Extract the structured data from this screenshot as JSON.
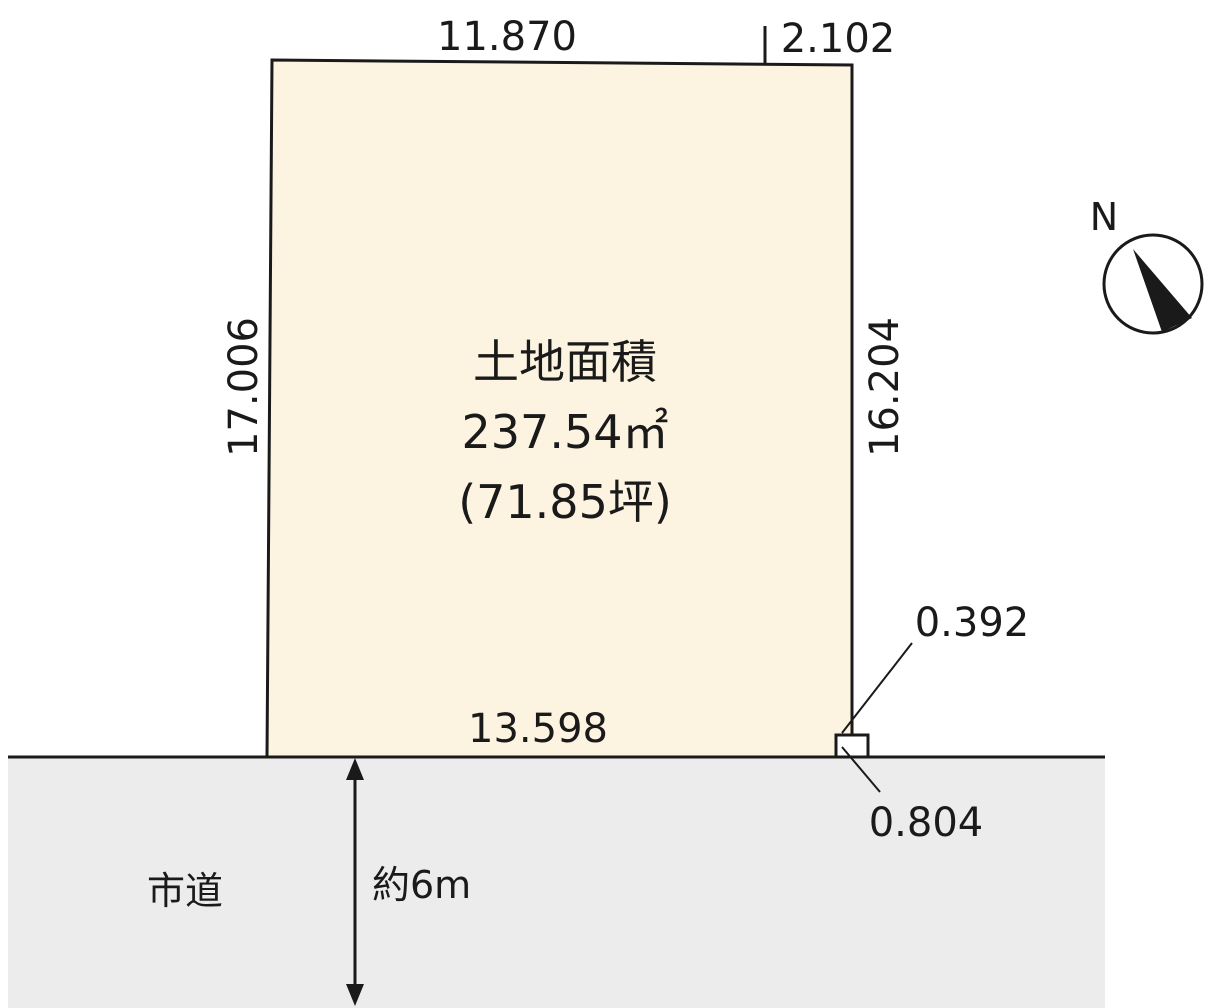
{
  "parcel": {
    "title": "土地面積",
    "area": "237.54㎡",
    "area_tsubo": "(71.85坪)"
  },
  "dimensions": {
    "top_left": "11.870",
    "top_right": "2.102",
    "left": "17.006",
    "right": "16.204",
    "bottom": "13.598",
    "corner_a": "0.392",
    "corner_b": "0.804"
  },
  "road": {
    "label": "市道",
    "width": "約6m"
  },
  "north": {
    "label": "N",
    "icon": "north-arrow-icon"
  },
  "colors": {
    "parcel_fill": "#fcf3e1",
    "road_fill": "#ececec",
    "line": "#1a1a1a"
  }
}
